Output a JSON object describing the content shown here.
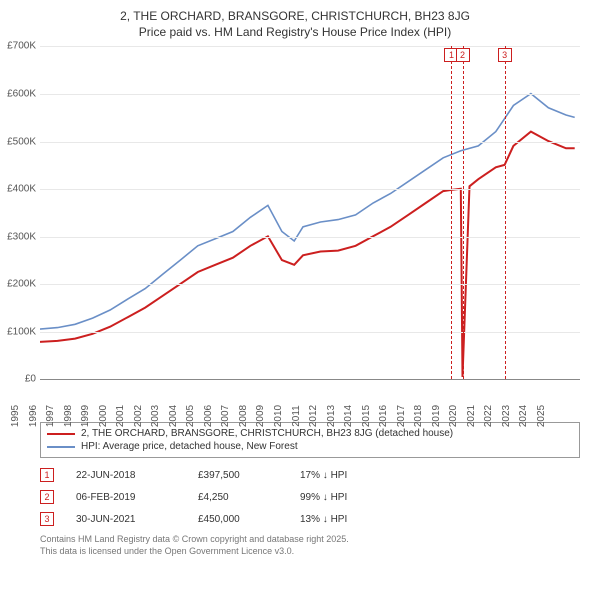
{
  "title_line1": "2, THE ORCHARD, BRANSGORE, CHRISTCHURCH, BH23 8JG",
  "title_line2": "Price paid vs. HM Land Registry's House Price Index (HPI)",
  "chart": {
    "type": "line",
    "x_years": [
      1995,
      1996,
      1997,
      1998,
      1999,
      2000,
      2001,
      2002,
      2003,
      2004,
      2005,
      2006,
      2007,
      2008,
      2009,
      2010,
      2011,
      2012,
      2013,
      2014,
      2015,
      2016,
      2017,
      2018,
      2019,
      2020,
      2021,
      2022,
      2023,
      2024,
      2025
    ],
    "xlim": [
      1995,
      2025.8
    ],
    "ylim": [
      0,
      700000
    ],
    "ytick_step": 100000,
    "yticks": [
      "£0",
      "£100K",
      "£200K",
      "£300K",
      "£400K",
      "£500K",
      "£600K",
      "£700K"
    ],
    "background_color": "#ffffff",
    "grid_color": "#e8e8e8",
    "series": [
      {
        "id": "property",
        "label": "2, THE ORCHARD, BRANSGORE, CHRISTCHURCH, BH23 8JG (detached house)",
        "color": "#cc1f1f",
        "line_width": 2,
        "data": [
          [
            1995,
            78000
          ],
          [
            1996,
            80000
          ],
          [
            1997,
            85000
          ],
          [
            1998,
            95000
          ],
          [
            1999,
            110000
          ],
          [
            2000,
            130000
          ],
          [
            2001,
            150000
          ],
          [
            2002,
            175000
          ],
          [
            2003,
            200000
          ],
          [
            2004,
            225000
          ],
          [
            2005,
            240000
          ],
          [
            2006,
            255000
          ],
          [
            2007,
            280000
          ],
          [
            2008,
            300000
          ],
          [
            2008.8,
            250000
          ],
          [
            2009.5,
            240000
          ],
          [
            2010,
            260000
          ],
          [
            2011,
            268000
          ],
          [
            2012,
            270000
          ],
          [
            2013,
            280000
          ],
          [
            2014,
            300000
          ],
          [
            2015,
            320000
          ],
          [
            2016,
            345000
          ],
          [
            2017,
            370000
          ],
          [
            2018,
            395000
          ],
          [
            2018.47,
            397500
          ],
          [
            2019,
            400000
          ],
          [
            2019.1,
            4250
          ],
          [
            2019.5,
            405000
          ],
          [
            2020,
            420000
          ],
          [
            2021,
            445000
          ],
          [
            2021.5,
            450000
          ],
          [
            2022,
            490000
          ],
          [
            2023,
            520000
          ],
          [
            2024,
            500000
          ],
          [
            2025,
            485000
          ],
          [
            2025.5,
            485000
          ]
        ]
      },
      {
        "id": "hpi",
        "label": "HPI: Average price, detached house, New Forest",
        "color": "#6a8fc7",
        "line_width": 1.6,
        "data": [
          [
            1995,
            105000
          ],
          [
            1996,
            108000
          ],
          [
            1997,
            115000
          ],
          [
            1998,
            128000
          ],
          [
            1999,
            145000
          ],
          [
            2000,
            168000
          ],
          [
            2001,
            190000
          ],
          [
            2002,
            220000
          ],
          [
            2003,
            250000
          ],
          [
            2004,
            280000
          ],
          [
            2005,
            295000
          ],
          [
            2006,
            310000
          ],
          [
            2007,
            340000
          ],
          [
            2008,
            365000
          ],
          [
            2008.8,
            310000
          ],
          [
            2009.5,
            290000
          ],
          [
            2010,
            320000
          ],
          [
            2011,
            330000
          ],
          [
            2012,
            335000
          ],
          [
            2013,
            345000
          ],
          [
            2014,
            370000
          ],
          [
            2015,
            390000
          ],
          [
            2016,
            415000
          ],
          [
            2017,
            440000
          ],
          [
            2018,
            465000
          ],
          [
            2019,
            480000
          ],
          [
            2020,
            490000
          ],
          [
            2021,
            520000
          ],
          [
            2022,
            575000
          ],
          [
            2023,
            600000
          ],
          [
            2024,
            570000
          ],
          [
            2025,
            555000
          ],
          [
            2025.5,
            550000
          ]
        ]
      }
    ],
    "markers": [
      {
        "n": "1",
        "x": 2018.47,
        "color": "#cc1f1f"
      },
      {
        "n": "2",
        "x": 2019.1,
        "color": "#cc1f1f"
      },
      {
        "n": "3",
        "x": 2021.5,
        "color": "#cc1f1f"
      }
    ]
  },
  "legend": {
    "rows": [
      {
        "color": "#cc1f1f",
        "label": "2, THE ORCHARD, BRANSGORE, CHRISTCHURCH, BH23 8JG (detached house)"
      },
      {
        "color": "#6a8fc7",
        "label": "HPI: Average price, detached house, New Forest"
      }
    ]
  },
  "events": [
    {
      "n": "1",
      "color": "#cc1f1f",
      "date": "22-JUN-2018",
      "price": "£397,500",
      "diff": "17% ↓ HPI"
    },
    {
      "n": "2",
      "color": "#cc1f1f",
      "date": "06-FEB-2019",
      "price": "£4,250",
      "diff": "99% ↓ HPI"
    },
    {
      "n": "3",
      "color": "#cc1f1f",
      "date": "30-JUN-2021",
      "price": "£450,000",
      "diff": "13% ↓ HPI"
    }
  ],
  "footer_line1": "Contains HM Land Registry data © Crown copyright and database right 2025.",
  "footer_line2": "This data is licensed under the Open Government Licence v3.0."
}
